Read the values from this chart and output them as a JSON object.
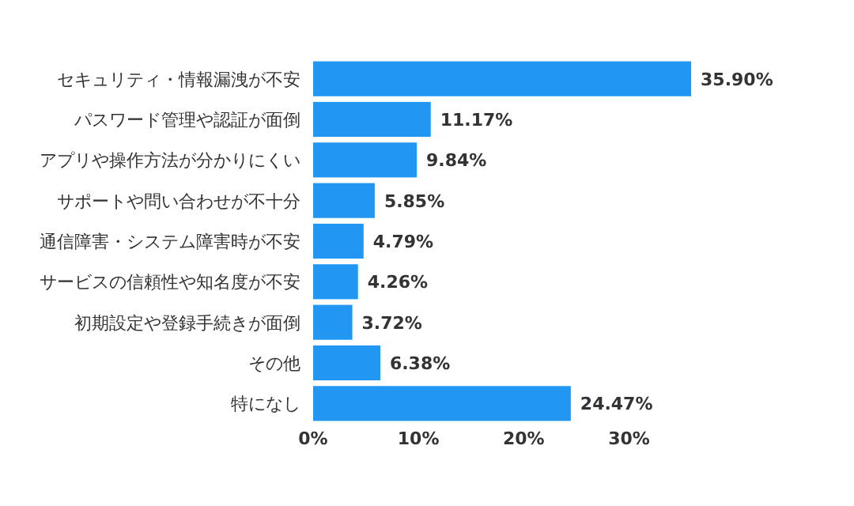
{
  "chart_data": {
    "type": "bar",
    "orientation": "horizontal",
    "categories": [
      "セキュリティ・情報漏洩が不安",
      "パスワード管理や認証が面倒",
      "アプリや操作方法が分かりにくい",
      "サポートや問い合わせが不十分",
      "通信障害・システム障害時が不安",
      "サービスの信頼性や知名度が不安",
      "初期設定や登録手続きが面倒",
      "その他",
      "特になし"
    ],
    "values": [
      35.9,
      11.17,
      9.84,
      5.85,
      4.79,
      4.26,
      3.72,
      6.38,
      24.47
    ],
    "value_labels": [
      "35.90%",
      "11.17%",
      "9.84%",
      "5.85%",
      "4.79%",
      "4.26%",
      "3.72%",
      "6.38%",
      "24.47%"
    ],
    "color": "#2196f3",
    "xlim": [
      0,
      36
    ],
    "xticks": [
      {
        "value": 0,
        "label": "0%"
      },
      {
        "value": 10,
        "label": "10%"
      },
      {
        "value": 20,
        "label": "20%"
      },
      {
        "value": 30,
        "label": "30%"
      }
    ]
  }
}
